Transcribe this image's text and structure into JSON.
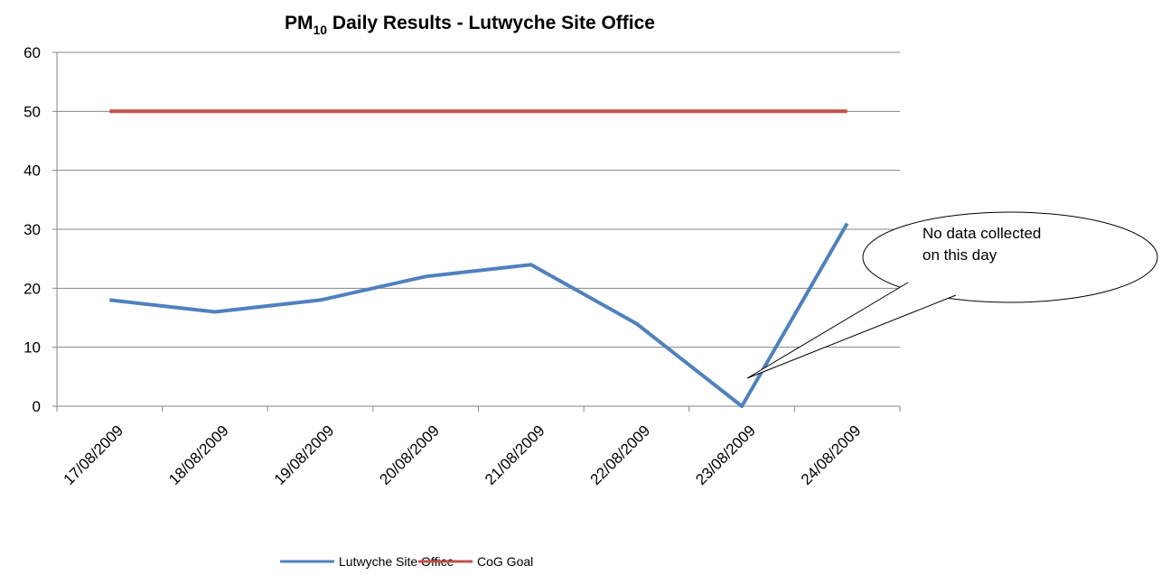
{
  "chart_data": {
    "type": "line",
    "title": [
      "PM",
      "10",
      " Daily Results - Lutwyche Site Office"
    ],
    "categories": [
      "17/08/2009",
      "18/08/2009",
      "19/08/2009",
      "20/08/2009",
      "21/08/2009",
      "22/08/2009",
      "23/08/2009",
      "24/08/2009"
    ],
    "series": [
      {
        "name": "Lutwyche Site Office",
        "color": "#4f81bd",
        "values": [
          18,
          16,
          18,
          22,
          24,
          14,
          0,
          31
        ]
      },
      {
        "name": "CoG Goal",
        "color": "#c0504d",
        "values": [
          50,
          50,
          50,
          50,
          50,
          50,
          50,
          50
        ]
      }
    ],
    "ylim": [
      0,
      60
    ],
    "yticks": [
      0,
      10,
      20,
      30,
      40,
      50,
      60
    ],
    "grid": true,
    "legend": "bottom",
    "annotation": [
      "No data collected",
      "on this day"
    ]
  }
}
